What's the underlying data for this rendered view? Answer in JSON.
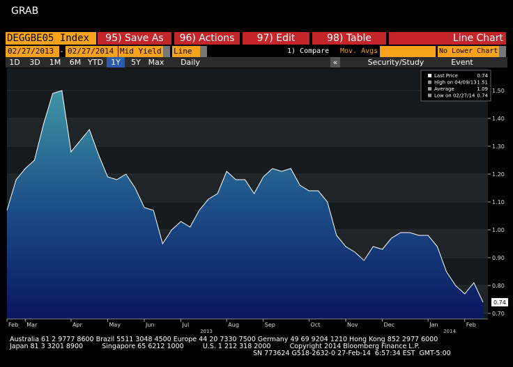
{
  "window_title": "GRAB",
  "toolbar": {
    "ticker": "DEGGBE05 Index",
    "buttons": [
      "95) Save As",
      "96) Actions",
      "97) Edit",
      "98) Table"
    ],
    "chart_type": "Line Chart"
  },
  "settings": {
    "start_date": "02/27/2013",
    "separator": "-",
    "end_date": "02/27/2014",
    "field": "Mid Yield",
    "style": "Line",
    "compare": "1) Compare",
    "mov_avgs": "Mov. Avgs",
    "lower_chart": "No Lower Chart"
  },
  "periods": {
    "items": [
      "1D",
      "3D",
      "1M",
      "6M",
      "YTD",
      "1Y",
      "5Y",
      "Max"
    ],
    "selected": "1Y",
    "frequency": "Daily",
    "collapse": "«",
    "study": "Security/Study",
    "event": "Event"
  },
  "chart_data": {
    "type": "line",
    "color": "#ffffff",
    "grid": true,
    "categories": [
      "Feb",
      null,
      "Mar",
      null,
      null,
      null,
      null,
      "Apr",
      null,
      null,
      null,
      "May",
      null,
      null,
      null,
      "Jun",
      null,
      null,
      null,
      "Jul",
      null,
      null,
      null,
      null,
      "Aug",
      null,
      null,
      null,
      "Sep",
      null,
      null,
      null,
      null,
      "Oct",
      null,
      null,
      null,
      "Nov",
      null,
      null,
      null,
      "Dec",
      null,
      null,
      null,
      null,
      "Jan",
      null,
      null,
      null,
      "Feb",
      null,
      null
    ],
    "values": [
      1.07,
      1.18,
      1.22,
      1.25,
      1.38,
      1.49,
      1.5,
      1.28,
      1.32,
      1.36,
      1.27,
      1.19,
      1.18,
      1.2,
      1.15,
      1.08,
      1.07,
      0.95,
      1.0,
      1.03,
      1.01,
      1.07,
      1.11,
      1.13,
      1.21,
      1.18,
      1.18,
      1.13,
      1.19,
      1.22,
      1.21,
      1.22,
      1.16,
      1.14,
      1.14,
      1.1,
      0.98,
      0.94,
      0.92,
      0.89,
      0.94,
      0.93,
      0.97,
      0.99,
      0.99,
      0.98,
      0.98,
      0.94,
      0.85,
      0.8,
      0.77,
      0.81,
      0.74
    ],
    "year_labels": [
      "2013",
      "2014"
    ],
    "ylim": [
      0.68,
      1.58
    ],
    "yticks": [
      {
        "value": 0.7,
        "label": "0.70"
      },
      {
        "value": 0.8,
        "label": "0.80"
      },
      {
        "value": 0.9,
        "label": "0.90"
      },
      {
        "value": 1.0,
        "label": "1.00"
      },
      {
        "value": 1.1,
        "label": "1.10"
      },
      {
        "value": 1.2,
        "label": "1.20"
      },
      {
        "value": 1.3,
        "label": "1.30"
      },
      {
        "value": 1.4,
        "label": "1.40"
      },
      {
        "value": 1.5,
        "label": "1.50"
      }
    ],
    "legend": [
      {
        "label": "Last Price",
        "value": 0.74
      },
      {
        "label": "High on 04/09/13",
        "value": 1.51
      },
      {
        "label": "Average",
        "value": 1.09
      },
      {
        "label": "Low on 02/27/14",
        "value": 0.74
      }
    ]
  },
  "footer": [
    "Australia 61 2 9777 8600 Brazil 5511 3048 4500 Europe 44 20 7330 7500 Germany 49 69 9204 1210 Hong Kong 852 2977 6000",
    "Japan 81 3 3201 8900         Singapore 65 6212 1000         U.S. 1 212 318 2000         Copyright 2014 Bloomberg Finance L.P.",
    "SN 773624 G518-2632-0 27-Feb-14  6:57:34 EST  GMT-5:00"
  ]
}
